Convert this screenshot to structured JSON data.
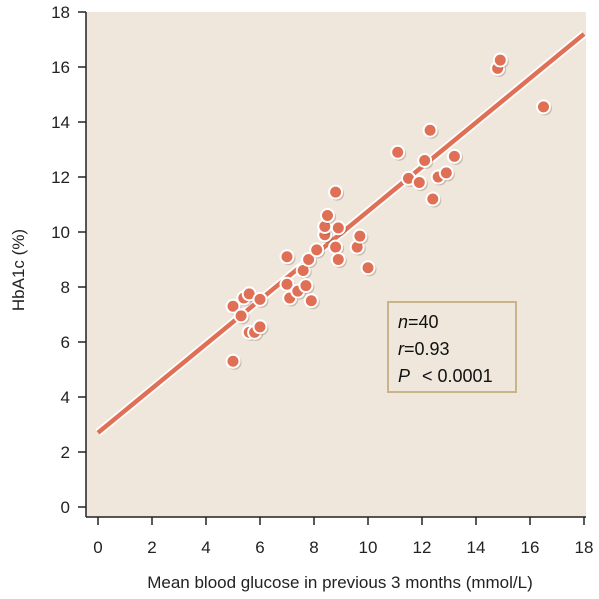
{
  "chart_data": {
    "type": "scatter",
    "title": "",
    "xlabel": "Mean blood glucose in previous 3 months (mmol/L)",
    "ylabel": "HbA1c (%)",
    "xlim": [
      0,
      18
    ],
    "ylim": [
      0,
      18
    ],
    "xticks": [
      0,
      2,
      4,
      6,
      8,
      10,
      12,
      14,
      16,
      18
    ],
    "yticks": [
      0,
      2,
      4,
      6,
      8,
      10,
      12,
      14,
      16,
      18
    ],
    "grid": false,
    "colors": {
      "plot_bg": "#efe7dc",
      "marker": "#e07055",
      "line": "#e07055",
      "box_border": "#c9b48a"
    },
    "series": [
      {
        "type": "scatter",
        "points": [
          [
            5.0,
            5.3
          ],
          [
            5.0,
            7.3
          ],
          [
            5.3,
            6.95
          ],
          [
            5.4,
            7.6
          ],
          [
            5.6,
            7.75
          ],
          [
            5.6,
            6.35
          ],
          [
            5.8,
            6.35
          ],
          [
            6.0,
            6.55
          ],
          [
            6.0,
            7.55
          ],
          [
            7.0,
            9.1
          ],
          [
            7.0,
            8.1
          ],
          [
            7.1,
            7.6
          ],
          [
            7.4,
            7.85
          ],
          [
            7.6,
            8.6
          ],
          [
            7.7,
            8.05
          ],
          [
            7.8,
            9.0
          ],
          [
            7.9,
            7.5
          ],
          [
            8.1,
            9.35
          ],
          [
            8.4,
            9.9
          ],
          [
            8.4,
            10.2
          ],
          [
            8.5,
            10.6
          ],
          [
            8.8,
            11.45
          ],
          [
            8.8,
            9.45
          ],
          [
            8.9,
            9.0
          ],
          [
            8.9,
            10.15
          ],
          [
            9.6,
            9.45
          ],
          [
            9.7,
            9.85
          ],
          [
            10.0,
            8.7
          ],
          [
            11.1,
            12.9
          ],
          [
            11.5,
            11.95
          ],
          [
            11.9,
            11.8
          ],
          [
            12.1,
            12.6
          ],
          [
            12.3,
            13.7
          ],
          [
            12.4,
            11.2
          ],
          [
            12.6,
            12.0
          ],
          [
            12.9,
            12.15
          ],
          [
            13.2,
            12.75
          ],
          [
            14.8,
            15.95
          ],
          [
            14.9,
            16.25
          ],
          [
            16.5,
            14.55
          ]
        ]
      },
      {
        "type": "line",
        "points": [
          [
            0,
            2.7
          ],
          [
            18,
            17.2
          ]
        ]
      }
    ],
    "annotations": {
      "n_var": "n",
      "n_val": "=40",
      "r_var": "r",
      "r_val": "=0.93",
      "p_var": "P",
      "p_val": "< 0.0001"
    }
  }
}
